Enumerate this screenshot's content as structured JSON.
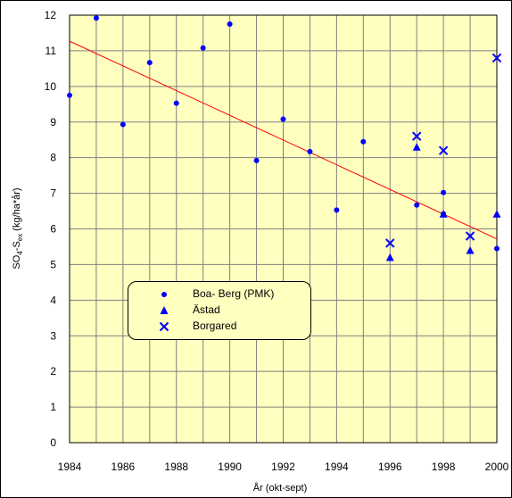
{
  "chart_data": {
    "type": "scatter",
    "title": "",
    "xlabel": "År (okt-sept)",
    "ylabel_main": "SO",
    "ylabel_sub1": "4",
    "ylabel_mid": "-S",
    "ylabel_sub2": "ex",
    "ylabel_tail": " (kg/ha*år)",
    "xlim": [
      1984,
      2000
    ],
    "ylim": [
      0,
      12
    ],
    "x_ticks": [
      "1984",
      "1986",
      "1988",
      "1990",
      "1992",
      "1994",
      "1996",
      "1998",
      "2000"
    ],
    "y_ticks": [
      "0",
      "1",
      "2",
      "3",
      "4",
      "5",
      "6",
      "7",
      "8",
      "9",
      "10",
      "11",
      "12"
    ],
    "grid": true,
    "background_color": "#ffffc0",
    "marker_color": "#0000ff",
    "trend_color": "#ff0000",
    "series": [
      {
        "name": "Boa- Berg (PMK)",
        "marker": "circle",
        "x": [
          1984,
          1985,
          1986,
          1987,
          1988,
          1989,
          1990,
          1991,
          1992,
          1993,
          1994,
          1995,
          1997,
          1998,
          1998,
          2000
        ],
        "y": [
          9.75,
          11.92,
          8.93,
          10.67,
          9.53,
          11.08,
          11.75,
          7.92,
          9.08,
          8.17,
          6.53,
          8.45,
          6.67,
          7.02,
          6.42,
          5.45
        ]
      },
      {
        "name": "Ästad",
        "marker": "triangle",
        "x": [
          1996,
          1997,
          1998,
          1999,
          2000
        ],
        "y": [
          5.2,
          8.3,
          6.42,
          5.4,
          6.42
        ]
      },
      {
        "name": "Borgared",
        "marker": "x",
        "x": [
          1996,
          1997,
          1998,
          1999,
          2000
        ],
        "y": [
          5.6,
          8.6,
          8.2,
          5.8,
          10.8
        ]
      }
    ],
    "trendline": {
      "x": [
        1984,
        2000
      ],
      "y": [
        11.27,
        5.72
      ]
    },
    "legend_placement": "lower-left"
  }
}
